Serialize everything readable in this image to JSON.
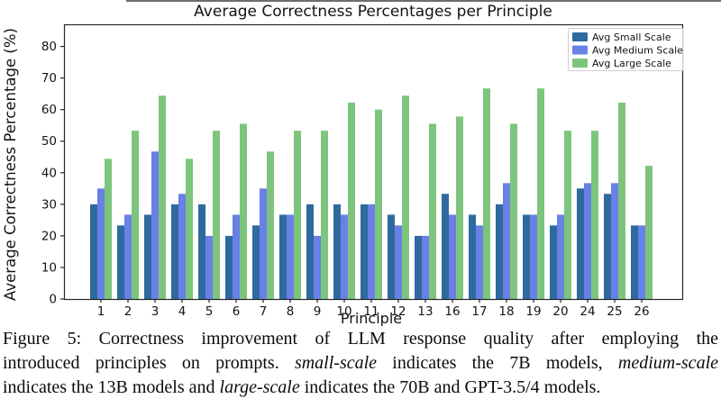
{
  "chart_data": {
    "type": "bar",
    "title": "Average Correctness Percentages per Principle",
    "xlabel": "Principle",
    "ylabel": "Average Correctness Percentage (%)",
    "categories": [
      "1",
      "2",
      "3",
      "4",
      "5",
      "6",
      "7",
      "8",
      "9",
      "10",
      "11",
      "12",
      "13",
      "16",
      "17",
      "18",
      "19",
      "20",
      "24",
      "25",
      "26"
    ],
    "series": [
      {
        "name": "Avg Small Scale",
        "color": "#2e6a9e",
        "values": [
          30.0,
          23.3,
          26.7,
          30.0,
          30.0,
          20.0,
          23.3,
          26.7,
          30.0,
          30.0,
          30.0,
          26.7,
          20.0,
          33.3,
          26.7,
          30.0,
          26.7,
          23.3,
          35.0,
          33.3,
          23.3
        ]
      },
      {
        "name": "Avg Medium Scale",
        "color": "#6981e6",
        "values": [
          35.0,
          26.7,
          46.7,
          33.3,
          20.0,
          26.7,
          35.0,
          26.7,
          20.0,
          26.7,
          30.0,
          23.3,
          20.0,
          26.7,
          23.3,
          36.7,
          26.7,
          26.7,
          36.7,
          36.7,
          23.3
        ]
      },
      {
        "name": "Avg Large Scale",
        "color": "#7dc57d",
        "values": [
          44.4,
          53.3,
          64.4,
          44.4,
          53.3,
          55.5,
          46.7,
          53.3,
          53.3,
          62.2,
          60.0,
          64.4,
          55.5,
          57.8,
          66.7,
          55.5,
          66.7,
          53.3,
          53.3,
          62.2,
          42.2
        ]
      }
    ],
    "ylim": [
      0,
      87
    ],
    "yticks": [
      0,
      10,
      20,
      30,
      40,
      50,
      60,
      70,
      80
    ],
    "legend_position": "upper right",
    "grid": false,
    "axis_color": "#262626",
    "legend_border_color": "#cfcfcf"
  },
  "caption": {
    "lines": [
      [
        {
          "t": "Figure 5: Correctness improvement of LLM response quality after employing the",
          "i": false
        }
      ],
      [
        {
          "t": "introduced principles on prompts. ",
          "i": false
        },
        {
          "t": "small-scale",
          "i": true
        },
        {
          "t": " indicates the 7B models, ",
          "i": false
        },
        {
          "t": "medium-scale",
          "i": true
        }
      ],
      [
        {
          "t": "indicates the 13B models and ",
          "i": false
        },
        {
          "t": "large-scale",
          "i": true
        },
        {
          "t": " indicates the 70B and GPT-3.5/4 models.",
          "i": false
        }
      ]
    ]
  }
}
